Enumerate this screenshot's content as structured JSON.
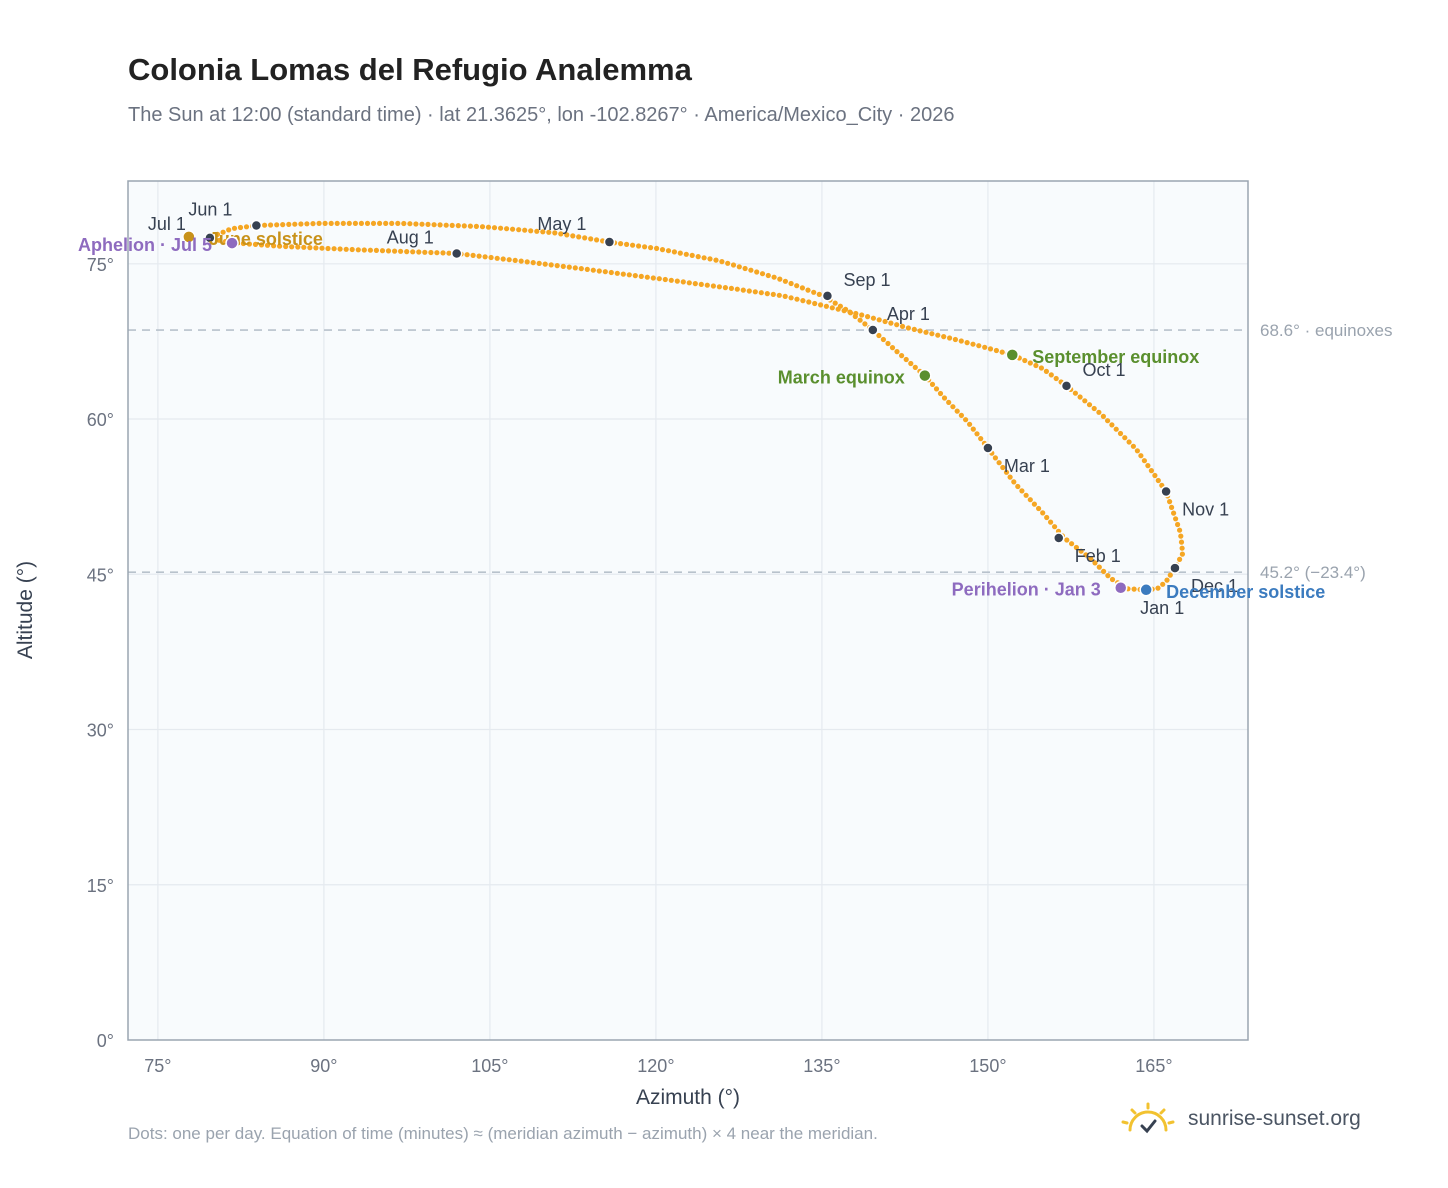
{
  "header": {
    "title": "Colonia Lomas del Refugio Analemma",
    "subtitle": "The Sun at 12:00 (standard time) · lat 21.3625°, lon -102.8267° · America/Mexico_City · 2026"
  },
  "footer": {
    "note": "Dots: one per day. Equation of time (minutes) ≈ (meridian azimuth − azimuth) × 4 near the meridian.",
    "brand": "sunrise-sunset.org"
  },
  "colors": {
    "curve": "#f5a623",
    "month_dot": "#374151",
    "equinox": "#5a8f2e",
    "december_solstice": "#3b7bbf",
    "june_solstice": "#c8921a",
    "apsis": "#8e6bbf",
    "reference_line": "#b8c2cc",
    "plot_bg": "#f8fbfd"
  },
  "chart_data": {
    "type": "scatter",
    "xlabel": "Azimuth (°)",
    "ylabel": "Altitude (°)",
    "xlim": [
      72.3,
      173.5
    ],
    "ylim": [
      0,
      83
    ],
    "xticks": [
      75,
      90,
      105,
      120,
      135,
      150,
      165
    ],
    "yticks": [
      0,
      15,
      30,
      45,
      60,
      75
    ],
    "xtick_labels": [
      "75°",
      "90°",
      "105°",
      "120°",
      "135°",
      "150°",
      "165°"
    ],
    "ytick_labels": [
      "0°",
      "15°",
      "30°",
      "45°",
      "60°",
      "75°"
    ],
    "grid": true,
    "reference_lines": [
      {
        "y": 68.6,
        "label": "68.6° · equinoxes"
      },
      {
        "y": 45.2,
        "label": "45.2° (−23.4°)"
      }
    ],
    "analemma_path": [
      [
        164.3,
        43.5
      ],
      [
        162.6,
        43.6
      ],
      [
        161.1,
        44.6
      ],
      [
        159.3,
        46.5
      ],
      [
        156.9,
        48.5
      ],
      [
        154.9,
        51.0
      ],
      [
        152.5,
        53.7
      ],
      [
        150.0,
        57.2
      ],
      [
        148.2,
        59.7
      ],
      [
        146.1,
        62.0
      ],
      [
        144.3,
        64.2
      ],
      [
        141.8,
        66.5
      ],
      [
        139.6,
        68.6
      ],
      [
        137.3,
        70.5
      ],
      [
        135.1,
        71.9
      ],
      [
        131.0,
        73.6
      ],
      [
        125.7,
        75.3
      ],
      [
        120.0,
        76.5
      ],
      [
        115.8,
        77.1
      ],
      [
        110.8,
        78.0
      ],
      [
        104.2,
        78.6
      ],
      [
        97.1,
        78.9
      ],
      [
        89.6,
        78.9
      ],
      [
        83.9,
        78.7
      ],
      [
        81.7,
        78.4
      ],
      [
        80.3,
        77.8
      ],
      [
        79.7,
        77.5
      ],
      [
        80.8,
        77.2
      ],
      [
        82.2,
        77.0
      ],
      [
        86.0,
        76.7
      ],
      [
        92.0,
        76.4
      ],
      [
        102.0,
        76.0
      ],
      [
        107.5,
        75.3
      ],
      [
        113.5,
        74.5
      ],
      [
        120.0,
        73.6
      ],
      [
        127.0,
        72.6
      ],
      [
        131.5,
        71.9
      ],
      [
        135.0,
        71.0
      ],
      [
        138.8,
        70.0
      ],
      [
        142.8,
        68.8
      ],
      [
        147.4,
        67.6
      ],
      [
        152.2,
        66.2
      ],
      [
        154.9,
        64.9
      ],
      [
        157.1,
        63.2
      ],
      [
        160.2,
        60.5
      ],
      [
        163.4,
        57.1
      ],
      [
        166.1,
        53.0
      ],
      [
        167.4,
        49.0
      ],
      [
        167.6,
        47.0
      ],
      [
        166.9,
        45.6
      ],
      [
        166.1,
        44.3
      ],
      [
        165.3,
        43.6
      ],
      [
        164.3,
        43.5
      ]
    ],
    "months": [
      {
        "label": "Jan 1",
        "x": 164.3,
        "y": 43.5
      },
      {
        "label": "Feb 1",
        "x": 156.4,
        "y": 48.5
      },
      {
        "label": "Mar 1",
        "x": 150.0,
        "y": 57.2
      },
      {
        "label": "Apr 1",
        "x": 139.6,
        "y": 68.6
      },
      {
        "label": "May 1",
        "x": 115.8,
        "y": 77.1
      },
      {
        "label": "Jun 1",
        "x": 83.9,
        "y": 78.7
      },
      {
        "label": "Jul 1",
        "x": 79.7,
        "y": 77.5
      },
      {
        "label": "Aug 1",
        "x": 102.0,
        "y": 76.0
      },
      {
        "label": "Sep 1",
        "x": 135.5,
        "y": 71.9
      },
      {
        "label": "Oct 1",
        "x": 157.1,
        "y": 63.2
      },
      {
        "label": "Nov 1",
        "x": 166.1,
        "y": 53.0
      },
      {
        "label": "Dec 1",
        "x": 166.9,
        "y": 45.6
      }
    ],
    "events": [
      {
        "label": "March equinox",
        "x": 144.3,
        "y": 64.2,
        "color": "#5a8f2e",
        "anchor": "end"
      },
      {
        "label": "September equinox",
        "x": 152.2,
        "y": 66.2,
        "color": "#5a8f2e",
        "anchor": "start"
      },
      {
        "label": "June solstice",
        "x": 77.8,
        "y": 77.6,
        "color": "#c8921a",
        "anchor": "start"
      },
      {
        "label": "December solstice",
        "x": 164.3,
        "y": 43.5,
        "color": "#3b7bbf",
        "anchor": "start"
      },
      {
        "label": "Aphelion · Jul 5",
        "x": 81.7,
        "y": 77.0,
        "color": "#8e6bbf",
        "anchor": "end"
      },
      {
        "label": "Perihelion · Jan 3",
        "x": 162.0,
        "y": 43.7,
        "color": "#8e6bbf",
        "anchor": "end"
      }
    ]
  }
}
